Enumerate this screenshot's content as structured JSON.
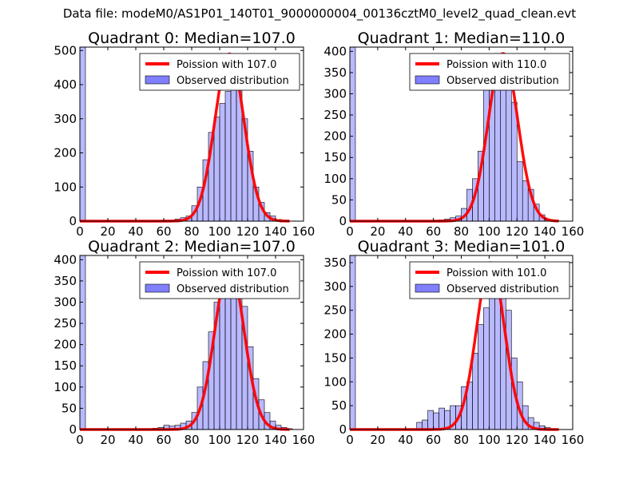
{
  "chart_data": {
    "type": "bar",
    "suptitle": "Data file: modeM0/AS1P01_140T01_9000000004_00136cztM0_level2_quad_clean.evt",
    "bin_width": 4,
    "colors": {
      "bars": "#7f7fff",
      "curve": "#ff0000"
    },
    "subplots": [
      {
        "title": "Quadrant 0: Median=107.0",
        "legend": [
          "Poission with 107.0",
          "Observed distribution"
        ],
        "legend_placement": "top-right",
        "xlim": [
          0,
          160
        ],
        "ylim": [
          0,
          510
        ],
        "xticks": [
          0,
          20,
          40,
          60,
          80,
          100,
          120,
          140,
          160
        ],
        "yticks": [
          0,
          100,
          200,
          300,
          400,
          500
        ],
        "mu": 107,
        "curve_peak": 490,
        "bins": [
          0,
          56,
          60,
          64,
          68,
          72,
          76,
          80,
          84,
          88,
          92,
          96,
          100,
          104,
          108,
          112,
          116,
          120,
          124,
          128,
          132,
          136,
          140
        ],
        "values": [
          510,
          2,
          3,
          3,
          6,
          10,
          15,
          45,
          100,
          180,
          260,
          305,
          345,
          380,
          480,
          395,
          300,
          205,
          100,
          55,
          25,
          15,
          5
        ]
      },
      {
        "title": "Quadrant 1: Median=110.0",
        "legend": [
          "Poission with 110.0",
          "Observed distribution"
        ],
        "legend_placement": "top-right",
        "xlim": [
          0,
          160
        ],
        "ylim": [
          0,
          410
        ],
        "xticks": [
          0,
          20,
          40,
          60,
          80,
          100,
          120,
          140,
          160
        ],
        "yticks": [
          0,
          50,
          100,
          150,
          200,
          250,
          300,
          350,
          400
        ],
        "mu": 110,
        "curve_peak": 395,
        "bins": [
          0,
          60,
          64,
          68,
          72,
          76,
          80,
          84,
          88,
          92,
          96,
          100,
          104,
          108,
          112,
          116,
          120,
          124,
          128,
          132,
          136,
          140
        ],
        "values": [
          410,
          2,
          3,
          5,
          8,
          12,
          30,
          75,
          100,
          165,
          335,
          385,
          395,
          395,
          350,
          280,
          140,
          95,
          75,
          40,
          15,
          5
        ]
      },
      {
        "title": "Quadrant 2: Median=107.0",
        "legend": [
          "Poission with 107.0",
          "Observed distribution"
        ],
        "legend_placement": "top-right",
        "xlim": [
          0,
          160
        ],
        "ylim": [
          0,
          410
        ],
        "xticks": [
          0,
          20,
          40,
          60,
          80,
          100,
          120,
          140,
          160
        ],
        "yticks": [
          0,
          50,
          100,
          150,
          200,
          250,
          300,
          350,
          400
        ],
        "mu": 107,
        "curve_peak": 390,
        "bins": [
          0,
          52,
          56,
          60,
          64,
          68,
          72,
          76,
          80,
          84,
          88,
          92,
          96,
          100,
          104,
          108,
          112,
          116,
          120,
          124,
          128,
          132,
          136,
          140,
          144,
          148
        ],
        "values": [
          410,
          3,
          5,
          10,
          8,
          10,
          15,
          20,
          40,
          100,
          160,
          230,
          300,
          310,
          320,
          390,
          335,
          290,
          195,
          120,
          70,
          40,
          20,
          10,
          5,
          2
        ]
      },
      {
        "title": "Quadrant 3: Median=101.0",
        "legend": [
          "Poission with 101.0",
          "Observed distribution"
        ],
        "legend_placement": "top-right",
        "xlim": [
          0,
          160
        ],
        "ylim": [
          0,
          365
        ],
        "xticks": [
          0,
          20,
          40,
          60,
          80,
          100,
          120,
          140,
          160
        ],
        "yticks": [
          0,
          50,
          100,
          150,
          200,
          250,
          300,
          350
        ],
        "mu": 101,
        "curve_peak": 350,
        "bins": [
          0,
          48,
          52,
          56,
          60,
          64,
          68,
          72,
          76,
          80,
          84,
          88,
          92,
          96,
          100,
          104,
          108,
          112,
          116,
          120,
          124,
          128,
          132,
          136,
          140,
          144
        ],
        "values": [
          365,
          15,
          20,
          40,
          35,
          45,
          40,
          50,
          50,
          90,
          100,
          160,
          220,
          255,
          330,
          350,
          310,
          250,
          150,
          100,
          50,
          25,
          15,
          8,
          4,
          2
        ]
      }
    ]
  }
}
